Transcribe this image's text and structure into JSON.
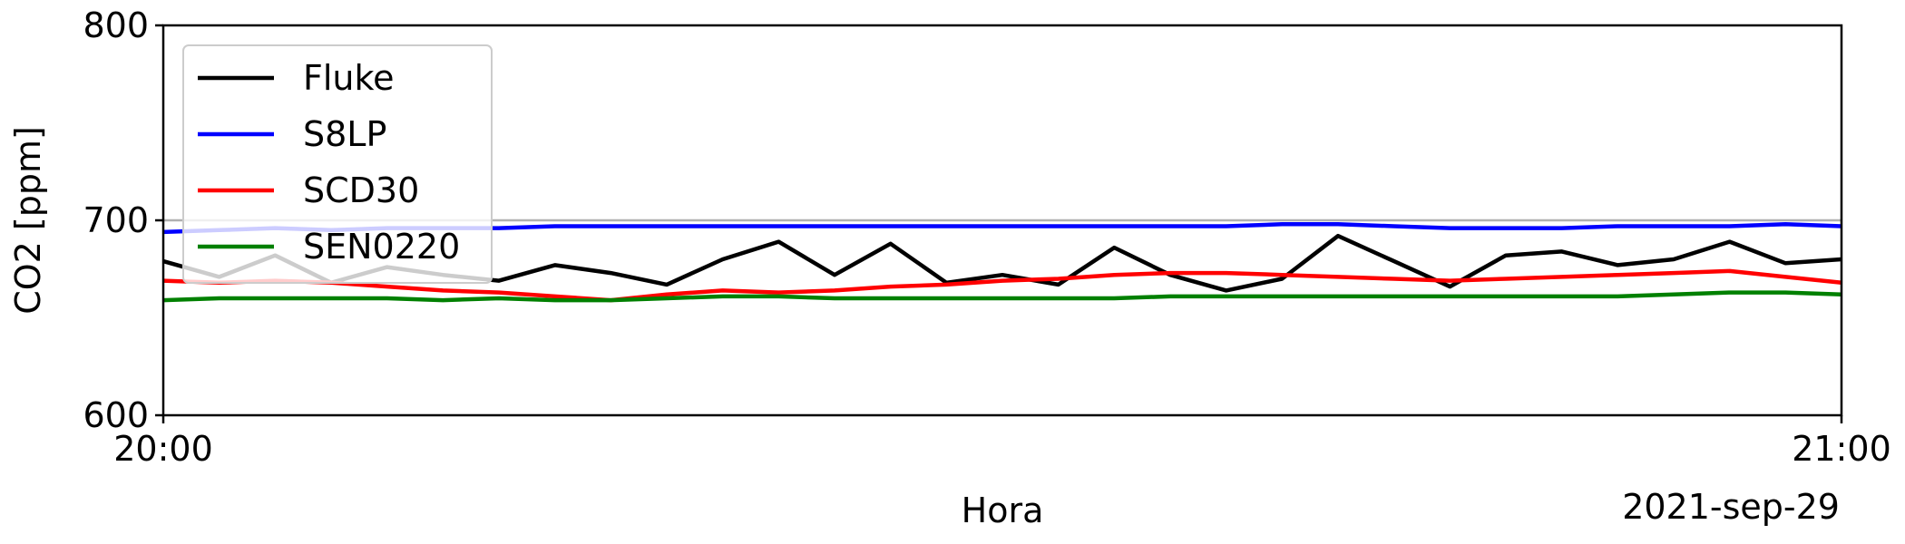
{
  "chart_data": {
    "type": "line",
    "title": "",
    "xlabel": "Hora",
    "ylabel": "CO2 [ppm]",
    "date_label": "2021-sep-29",
    "xticks": [
      "20:00",
      "21:00"
    ],
    "xlim": [
      "20:00",
      "21:00"
    ],
    "ylim": [
      600,
      800
    ],
    "yticks": [
      600,
      700,
      800
    ],
    "grid": "horizontal line at 700",
    "legend_position": "upper-left",
    "x": [
      "20:00",
      "20:02",
      "20:04",
      "20:06",
      "20:08",
      "20:10",
      "20:12",
      "20:14",
      "20:16",
      "20:18",
      "20:20",
      "20:22",
      "20:24",
      "20:26",
      "20:28",
      "20:30",
      "20:32",
      "20:34",
      "20:36",
      "20:38",
      "20:40",
      "20:42",
      "20:44",
      "20:46",
      "20:48",
      "20:50",
      "20:52",
      "20:54",
      "20:56",
      "20:58",
      "21:00"
    ],
    "series": [
      {
        "name": "Fluke",
        "color": "#000000",
        "values": [
          679,
          671,
          682,
          668,
          676,
          672,
          669,
          677,
          673,
          667,
          680,
          689,
          672,
          688,
          668,
          672,
          667,
          686,
          672,
          664,
          670,
          692,
          679,
          666,
          682,
          684,
          677,
          680,
          689,
          678,
          680
        ]
      },
      {
        "name": "S8LP",
        "color": "#0000ff",
        "values": [
          694,
          695,
          696,
          695,
          696,
          696,
          696,
          697,
          697,
          697,
          697,
          697,
          697,
          697,
          697,
          697,
          697,
          697,
          697,
          697,
          698,
          698,
          697,
          696,
          696,
          696,
          697,
          697,
          697,
          698,
          697
        ]
      },
      {
        "name": "SCD30",
        "color": "#ff0000",
        "values": [
          669,
          668,
          669,
          668,
          666,
          664,
          663,
          661,
          659,
          662,
          664,
          663,
          664,
          666,
          667,
          669,
          670,
          672,
          673,
          673,
          672,
          671,
          670,
          669,
          670,
          671,
          672,
          673,
          674,
          671,
          668
        ]
      },
      {
        "name": "SEN0220",
        "color": "#008000",
        "values": [
          659,
          660,
          660,
          660,
          660,
          659,
          660,
          659,
          659,
          660,
          661,
          661,
          660,
          660,
          660,
          660,
          660,
          660,
          661,
          661,
          661,
          661,
          661,
          661,
          661,
          661,
          661,
          662,
          663,
          663,
          662
        ]
      }
    ]
  }
}
